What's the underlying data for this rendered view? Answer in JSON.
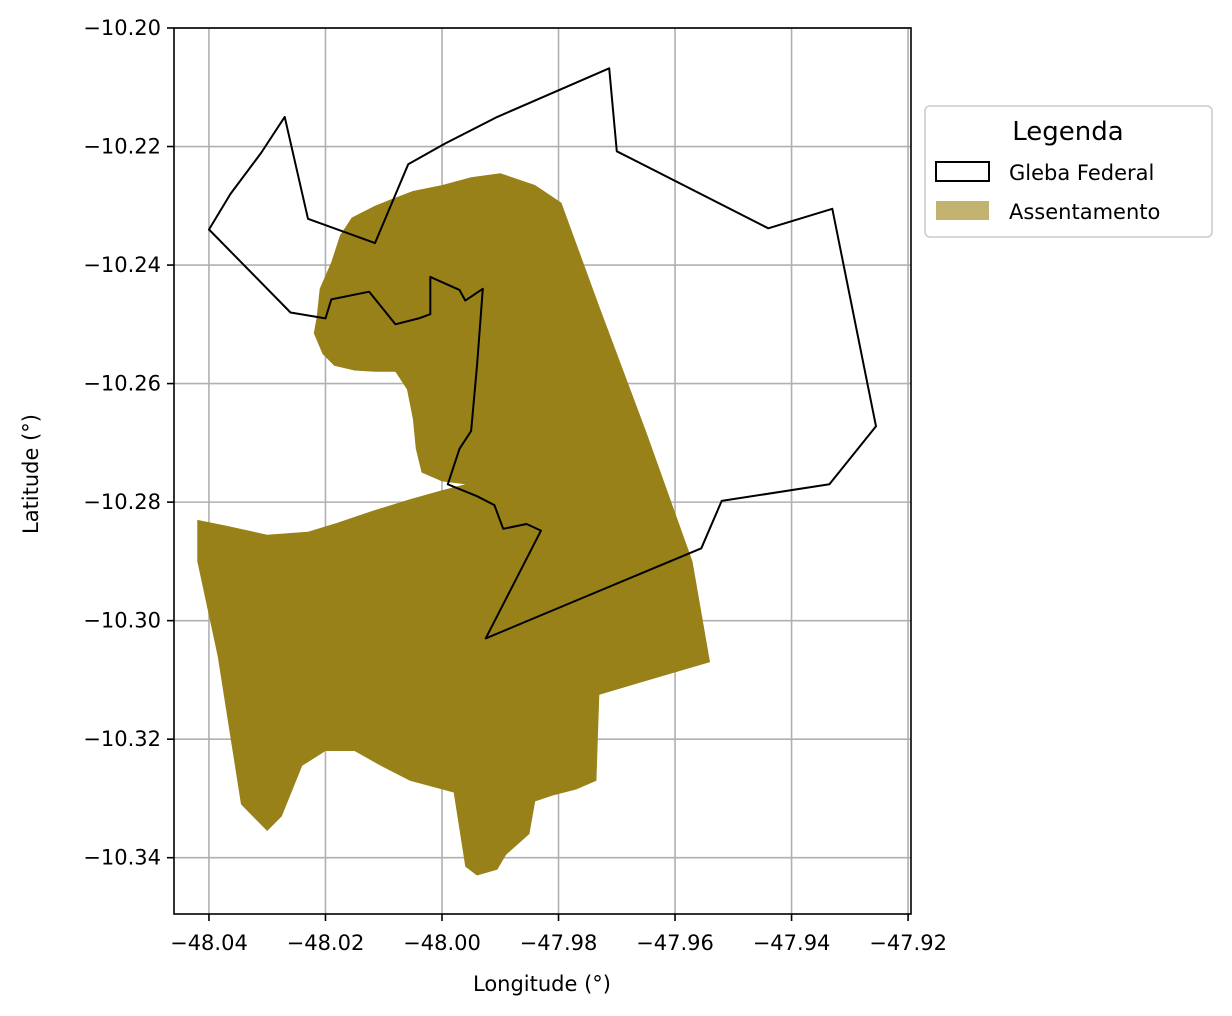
{
  "chart_data": {
    "type": "map",
    "xlabel": "Longitude (°)",
    "ylabel": "Latitude (°)",
    "xlim": [
      -48.046,
      -47.9195
    ],
    "ylim": [
      -10.3495,
      -10.2
    ],
    "grid": true,
    "x_ticks": [
      -48.04,
      -48.02,
      -48.0,
      -47.98,
      -47.96,
      -47.94,
      -47.92
    ],
    "y_ticks": [
      -10.2,
      -10.22,
      -10.24,
      -10.26,
      -10.28,
      -10.3,
      -10.32,
      -10.34
    ],
    "x_tick_labels": [
      "−48.04",
      "−48.02",
      "−48.00",
      "−47.98",
      "−47.96",
      "−47.94",
      "−47.92"
    ],
    "y_tick_labels": [
      "−10.20",
      "−10.22",
      "−10.24",
      "−10.26",
      "−10.28",
      "−10.30",
      "−10.32",
      "−10.34"
    ],
    "legend": {
      "title": "Legenda",
      "placement": "outside-right-top",
      "entries": [
        {
          "label": "Gleba Federal",
          "style": "outline",
          "color": "#000000"
        },
        {
          "label": "Assentamento",
          "style": "fill",
          "color": "#c2b370"
        }
      ]
    },
    "colors": {
      "assentamento_fill": "#988118",
      "gleba_stroke": "#000000",
      "grid": "#b0b0b0"
    },
    "layers": [
      {
        "name": "Assentamento",
        "type": "polygon",
        "rings": [
          [
            [
              -48.0215,
              -10.2488
            ],
            [
              -48.021,
              -10.244
            ],
            [
              -48.019,
              -10.2395
            ],
            [
              -48.0175,
              -10.235
            ],
            [
              -48.0155,
              -10.232
            ],
            [
              -48.0115,
              -10.23
            ],
            [
              -48.009,
              -10.229
            ],
            [
              -48.005,
              -10.2275
            ],
            [
              -48.0,
              -10.2265
            ],
            [
              -47.995,
              -10.2252
            ],
            [
              -47.99,
              -10.2245
            ],
            [
              -47.984,
              -10.2265
            ],
            [
              -47.9795,
              -10.2295
            ],
            [
              -47.973,
              -10.247
            ],
            [
              -47.965,
              -10.268
            ],
            [
              -47.957,
              -10.29
            ],
            [
              -47.954,
              -10.307
            ],
            [
              -47.973,
              -10.3125
            ],
            [
              -47.9735,
              -10.327
            ],
            [
              -47.977,
              -10.3285
            ],
            [
              -47.981,
              -10.3295
            ],
            [
              -47.984,
              -10.3305
            ],
            [
              -47.985,
              -10.336
            ],
            [
              -47.989,
              -10.3395
            ],
            [
              -47.9905,
              -10.342
            ],
            [
              -47.994,
              -10.343
            ],
            [
              -47.996,
              -10.3415
            ],
            [
              -47.998,
              -10.329
            ],
            [
              -48.0055,
              -10.327
            ],
            [
              -48.0105,
              -10.3245
            ],
            [
              -48.015,
              -10.322
            ],
            [
              -48.02,
              -10.322
            ],
            [
              -48.024,
              -10.3245
            ],
            [
              -48.0275,
              -10.333
            ],
            [
              -48.03,
              -10.3355
            ],
            [
              -48.0345,
              -10.331
            ],
            [
              -48.0385,
              -10.306
            ],
            [
              -48.042,
              -10.29
            ],
            [
              -48.042,
              -10.283
            ],
            [
              -48.037,
              -10.284
            ],
            [
              -48.03,
              -10.2855
            ],
            [
              -48.023,
              -10.285
            ],
            [
              -48.018,
              -10.2835
            ],
            [
              -48.012,
              -10.2815
            ],
            [
              -48.0055,
              -10.2795
            ],
            [
              -48.0,
              -10.278
            ],
            [
              -47.996,
              -10.277
            ],
            [
              -48.0,
              -10.2765
            ],
            [
              -48.0035,
              -10.275
            ],
            [
              -48.0045,
              -10.271
            ],
            [
              -48.005,
              -10.266
            ],
            [
              -48.006,
              -10.261
            ],
            [
              -48.008,
              -10.258
            ],
            [
              -48.0115,
              -10.258
            ],
            [
              -48.015,
              -10.2578
            ],
            [
              -48.0185,
              -10.257
            ],
            [
              -48.0205,
              -10.255
            ],
            [
              -48.022,
              -10.2515
            ]
          ]
        ]
      },
      {
        "name": "Gleba Federal",
        "type": "polygon",
        "rings": [
          [
            [
              -48.04,
              -10.234
            ],
            [
              -48.0363,
              -10.228
            ],
            [
              -48.031,
              -10.221
            ],
            [
              -48.027,
              -10.215
            ],
            [
              -48.023,
              -10.2322
            ],
            [
              -48.0115,
              -10.2363
            ],
            [
              -48.0058,
              -10.223
            ],
            [
              -47.9995,
              -10.2195
            ],
            [
              -47.9905,
              -10.215
            ],
            [
              -47.9713,
              -10.2068
            ],
            [
              -47.97,
              -10.2208
            ],
            [
              -47.944,
              -10.2338
            ],
            [
              -47.933,
              -10.2305
            ],
            [
              -47.9255,
              -10.2672
            ],
            [
              -47.9335,
              -10.277
            ],
            [
              -47.952,
              -10.2798
            ],
            [
              -47.9555,
              -10.2878
            ],
            [
              -47.9925,
              -10.303
            ],
            [
              -47.983,
              -10.2848
            ],
            [
              -47.9855,
              -10.2837
            ],
            [
              -47.9895,
              -10.2845
            ],
            [
              -47.991,
              -10.2805
            ],
            [
              -47.994,
              -10.279
            ],
            [
              -47.999,
              -10.277
            ],
            [
              -47.997,
              -10.271
            ],
            [
              -47.995,
              -10.268
            ],
            [
              -47.994,
              -10.257
            ],
            [
              -47.993,
              -10.244
            ],
            [
              -47.996,
              -10.246
            ],
            [
              -47.997,
              -10.2442
            ],
            [
              -48.002,
              -10.242
            ],
            [
              -48.002,
              -10.2483
            ],
            [
              -48.004,
              -10.249
            ],
            [
              -48.008,
              -10.25
            ],
            [
              -48.0125,
              -10.2445
            ],
            [
              -48.019,
              -10.2458
            ],
            [
              -48.02,
              -10.249
            ],
            [
              -48.026,
              -10.248
            ]
          ]
        ]
      }
    ]
  }
}
